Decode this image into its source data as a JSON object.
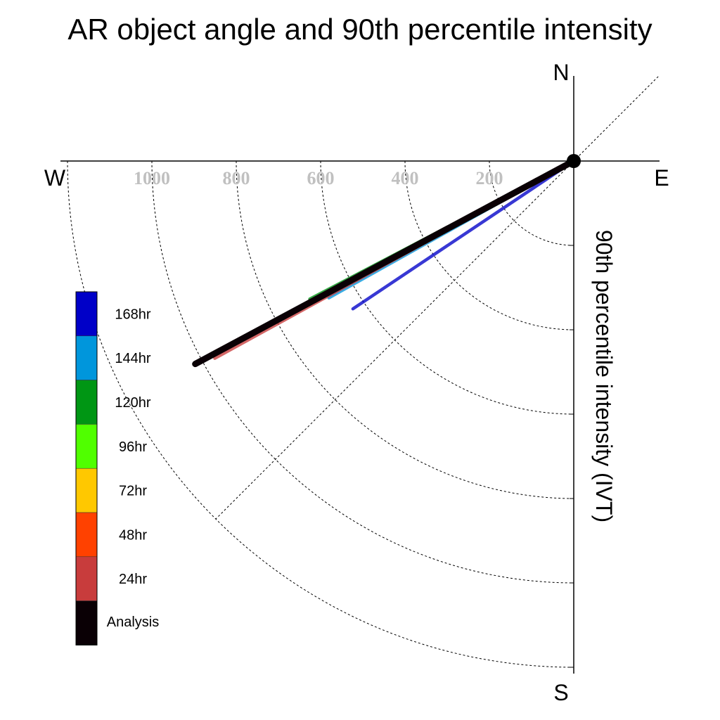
{
  "chart_data": {
    "type": "polar-line",
    "title": "AR object angle and 90th percentile intensity",
    "ylabel": "90th percentile intensity (IVT)",
    "compass": {
      "north": "N",
      "south": "S",
      "east": "E",
      "west": "W"
    },
    "radial_range": [
      0,
      1200
    ],
    "radial_ticks": [
      {
        "value": 200,
        "label": "200"
      },
      {
        "value": 400,
        "label": "400"
      },
      {
        "value": 600,
        "label": "600"
      },
      {
        "value": 800,
        "label": "800"
      },
      {
        "value": 1000,
        "label": "1000"
      }
    ],
    "grid": "dashed",
    "legend_position": "left",
    "series": [
      {
        "name": "168hr",
        "color": "#0000c8",
        "angle_deg": 213.8,
        "intensity": 630,
        "visible": true
      },
      {
        "name": "144hr",
        "color": "#0096dc",
        "angle_deg": 209.2,
        "intensity": 665,
        "visible": true
      },
      {
        "name": "120hr",
        "color": "#009614",
        "angle_deg": 207.6,
        "intensity": 706,
        "visible": true
      },
      {
        "name": "96hr",
        "color": "#50ff00",
        "visible": false
      },
      {
        "name": "72hr",
        "color": "#ffc800",
        "visible": false
      },
      {
        "name": "48hr",
        "color": "#ff4100",
        "angle_deg": 208.0,
        "intensity": 976,
        "visible": true
      },
      {
        "name": "24hr",
        "color": "#c83c3c",
        "angle_deg": 208.8,
        "intensity": 971,
        "visible": true
      },
      {
        "name": "Analysis",
        "color": "#0a0005",
        "angle_deg": 208.2,
        "intensity": 1018,
        "visible": true
      }
    ]
  }
}
